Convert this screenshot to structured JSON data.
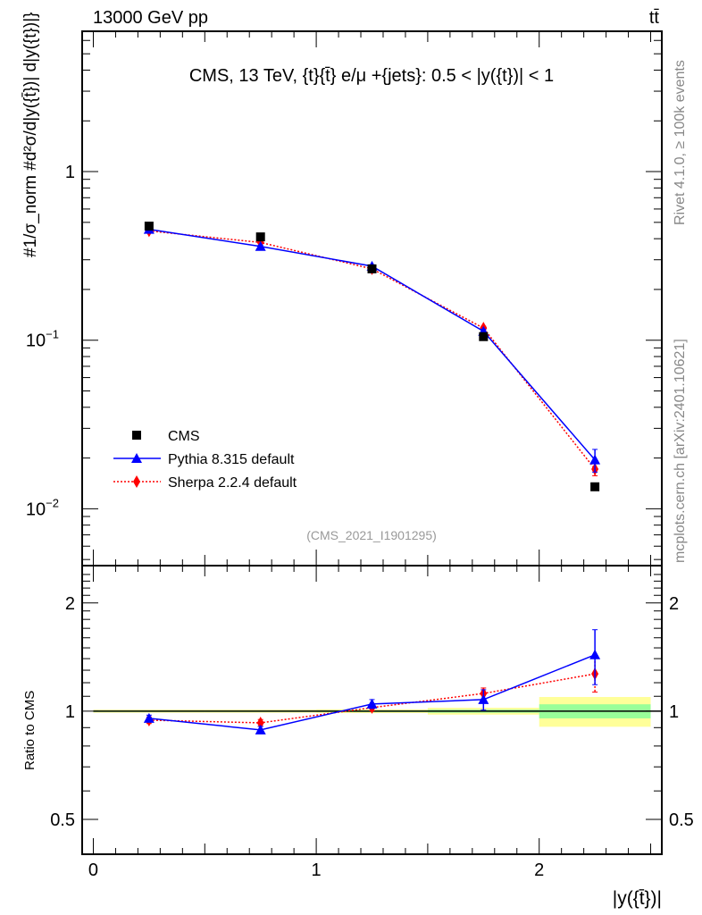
{
  "header": {
    "left": "13000 GeV pp",
    "right": "tt̄"
  },
  "side": {
    "top": "Rivet 4.1.0, ≥ 100k events",
    "bottom": "mcplots.cern.ch [arXiv:2401.10621]"
  },
  "colors": {
    "cms": "#000000",
    "pythia": "#0000ff",
    "sherpa": "#ff0000",
    "band_inner": "#99ff99",
    "band_outer": "#ffff99"
  },
  "chart_data": [
    {
      "type": "line",
      "title": "CMS, 13 TeV, {t}{t̄} e/μ +{jets}: 0.5 < |y({t})| < 1",
      "ylabel": "#1/σ_norm #d²σ/d|y({t̄})| d|y({t})|}",
      "watermark": "(CMS_2021_I1901295)",
      "yscale": "log",
      "xlim": [
        -0.05,
        2.55
      ],
      "ylim": [
        0.0046,
        6.8
      ],
      "yticks": [
        {
          "base": "10",
          "exp": "−2",
          "value": 0.01
        },
        {
          "base": "10",
          "exp": "−1",
          "value": 0.1
        },
        {
          "base": "1",
          "exp": "",
          "value": 1
        }
      ],
      "legend_position": "bottom-left",
      "x": [
        0.25,
        0.75,
        1.25,
        1.75,
        2.25
      ],
      "series": [
        {
          "name": "CMS",
          "key": "cms",
          "values": [
            0.475,
            0.41,
            0.265,
            0.105,
            0.0135
          ]
        },
        {
          "name": "Pythia 8.315 default",
          "key": "pythia",
          "values": [
            0.455,
            0.36,
            0.275,
            0.113,
            0.0195
          ],
          "errors": [
            0.006,
            0.006,
            0.005,
            0.003,
            0.003
          ]
        },
        {
          "name": "Sherpa 2.2.4 default",
          "key": "sherpa",
          "values": [
            0.445,
            0.38,
            0.265,
            0.118,
            0.0172
          ],
          "errors": [
            0.006,
            0.006,
            0.005,
            0.003,
            0.0015
          ]
        }
      ]
    },
    {
      "type": "line",
      "ylabel": "Ratio to CMS",
      "xlabel": "|y({t̄})|",
      "yscale": "log",
      "xlim": [
        -0.05,
        2.55
      ],
      "ylim": [
        0.4,
        2.54
      ],
      "xticks": [
        {
          "label": "0",
          "value": 0
        },
        {
          "label": "1",
          "value": 1
        },
        {
          "label": "2",
          "value": 2
        }
      ],
      "yticks": [
        {
          "label": "0.5",
          "value": 0.5
        },
        {
          "label": "1",
          "value": 1
        },
        {
          "label": "2",
          "value": 2
        }
      ],
      "bins": [
        [
          0,
          0.5
        ],
        [
          0.5,
          1
        ],
        [
          1,
          1.5
        ],
        [
          1.5,
          2
        ],
        [
          2,
          2.5
        ]
      ],
      "band_inner": [
        0.005,
        0.005,
        0.006,
        0.01,
        0.045
      ],
      "band_outer": [
        0.01,
        0.01,
        0.012,
        0.022,
        0.095
      ],
      "x": [
        0.25,
        0.75,
        1.25,
        1.75,
        2.25
      ],
      "series": [
        {
          "name": "Pythia 8.315 default",
          "key": "pythia",
          "values": [
            0.955,
            0.887,
            1.047,
            1.077,
            1.435
          ],
          "errors": [
            0.02,
            0.02,
            0.03,
            0.07,
            0.25
          ]
        },
        {
          "name": "Sherpa 2.2.4 default",
          "key": "sherpa",
          "values": [
            0.944,
            0.928,
            1.023,
            1.12,
            1.27
          ],
          "errors": [
            0.02,
            0.02,
            0.02,
            0.04,
            0.14
          ]
        }
      ]
    }
  ]
}
